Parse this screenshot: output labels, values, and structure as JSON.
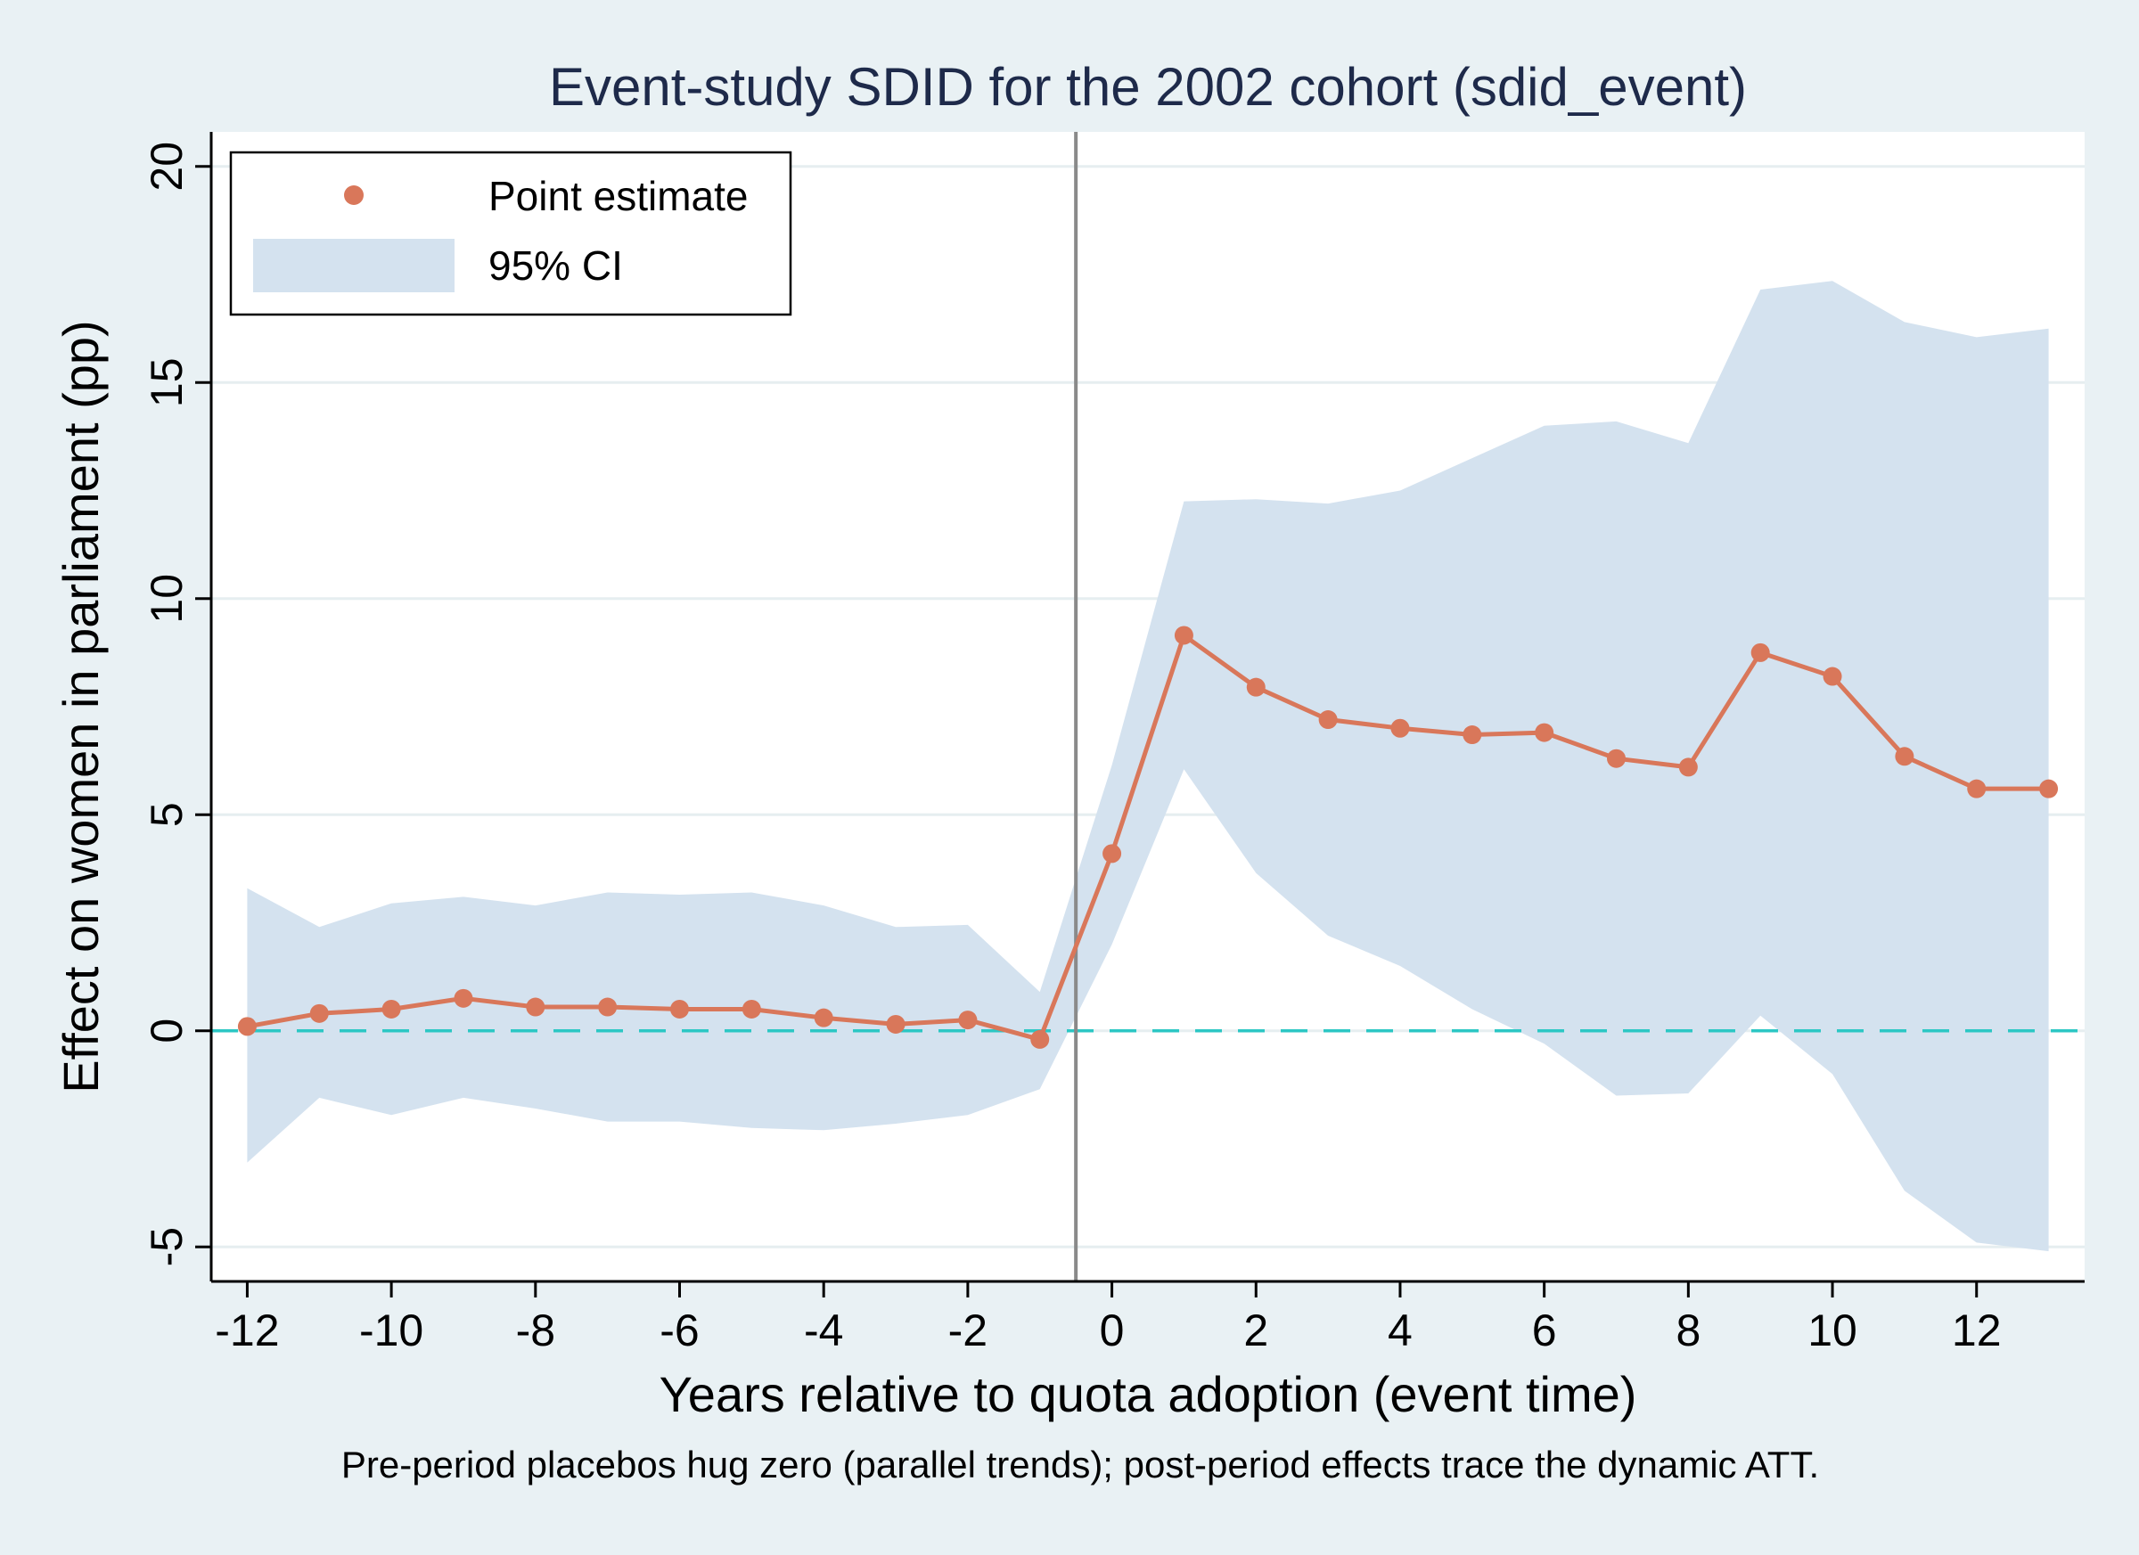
{
  "chart_data": {
    "type": "line",
    "title": "Event-study SDID for the 2002 cohort (sdid_event)",
    "xlabel": "Years relative to quota adoption (event time)",
    "ylabel": "Effect on women in parliament (pp)",
    "note": "Pre-period placebos hug zero (parallel trends); post-period effects trace the dynamic ATT.",
    "xlim": [
      -12.5,
      13.5
    ],
    "ylim": [
      -5.8,
      20.8
    ],
    "x_ticks": [
      -12,
      -10,
      -8,
      -6,
      -4,
      -2,
      0,
      2,
      4,
      6,
      8,
      10,
      12
    ],
    "x_tick_labels": [
      "-12",
      "-10",
      "-8",
      "-6",
      "-4",
      "-2",
      "0",
      "2",
      "4",
      "6",
      "8",
      "10",
      "12"
    ],
    "y_ticks": [
      -5,
      0,
      5,
      10,
      15,
      20
    ],
    "y_tick_labels": [
      "-5",
      "0",
      "5",
      "10",
      "15",
      "20"
    ],
    "grid": true,
    "legend": {
      "position": "top-left",
      "entries": [
        "Point estimate",
        "95% CI"
      ]
    },
    "reference_lines": {
      "vertical_x": -0.5,
      "horizontal_y": 0
    },
    "x": [
      -12,
      -11,
      -10,
      -9,
      -8,
      -7,
      -6,
      -5,
      -4,
      -3,
      -2,
      -1,
      0,
      1,
      2,
      3,
      4,
      5,
      6,
      7,
      8,
      9,
      10,
      11,
      12,
      13
    ],
    "series": [
      {
        "name": "Point estimate",
        "values": [
          0.1,
          0.4,
          0.5,
          0.75,
          0.55,
          0.55,
          0.5,
          0.5,
          0.3,
          0.15,
          0.25,
          -0.2,
          4.1,
          9.15,
          7.95,
          7.2,
          7.0,
          6.85,
          6.9,
          6.3,
          6.1,
          8.75,
          8.2,
          6.35,
          5.6,
          5.6
        ]
      },
      {
        "name": "95% CI",
        "lower": [
          -3.05,
          -1.55,
          -1.95,
          -1.55,
          -1.8,
          -2.1,
          -2.1,
          -2.25,
          -2.3,
          -2.15,
          -1.95,
          -1.35,
          2.0,
          6.05,
          3.65,
          2.2,
          1.5,
          0.5,
          -0.3,
          -1.5,
          -1.45,
          0.35,
          -1.0,
          -3.7,
          -4.9,
          -5.1
        ],
        "upper": [
          3.3,
          2.4,
          2.95,
          3.1,
          2.9,
          3.2,
          3.15,
          3.2,
          2.9,
          2.4,
          2.45,
          0.9,
          6.15,
          12.25,
          12.3,
          12.2,
          12.5,
          13.25,
          14.0,
          14.1,
          13.6,
          17.15,
          17.35,
          16.4,
          16.05,
          16.25
        ]
      }
    ],
    "colors": {
      "point": "#d9775a",
      "ci_band": "#d4e2ef",
      "zero_line": "#2cc7c4",
      "vertical_line": "#8a8a8a",
      "grid": "#e6eef0",
      "title": "#1e2a4a"
    }
  }
}
